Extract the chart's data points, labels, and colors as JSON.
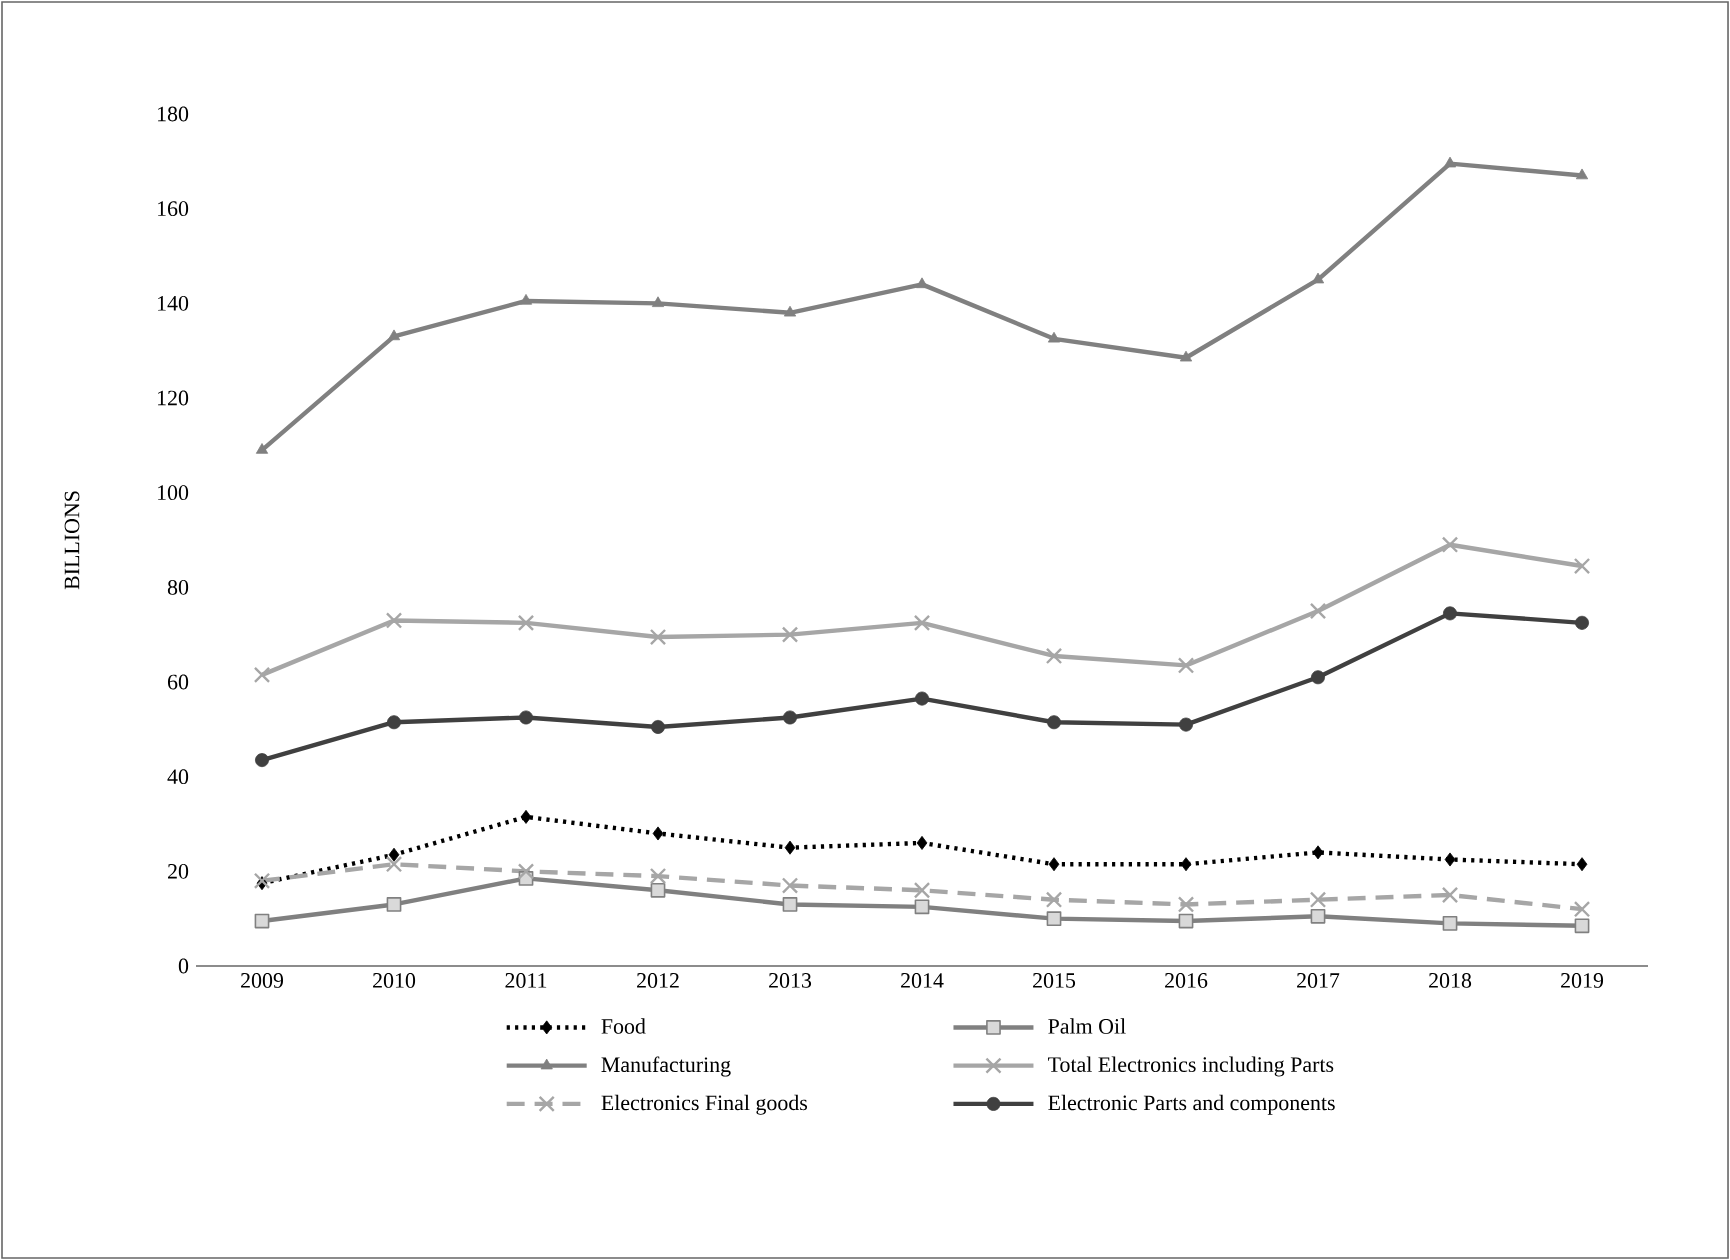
{
  "chart_data": {
    "type": "line",
    "ylabel": "BILLIONS",
    "categories": [
      "2009",
      "2010",
      "2011",
      "2012",
      "2013",
      "2014",
      "2015",
      "2016",
      "2017",
      "2018",
      "2019"
    ],
    "ylim": [
      0,
      180
    ],
    "yticks": [
      0,
      20,
      40,
      60,
      80,
      100,
      120,
      140,
      160,
      180
    ],
    "legend": "bottom",
    "series": [
      {
        "name": "Food",
        "color": "#000000",
        "marker": "diamond",
        "line_style": "dotted",
        "values": [
          17.5,
          23.5,
          31.5,
          28,
          25,
          26,
          21.5,
          21.5,
          24,
          22.5,
          21.5
        ]
      },
      {
        "name": "Palm Oil",
        "color": "#808080",
        "marker": "square",
        "line_style": "solid",
        "values": [
          9.5,
          13,
          18.5,
          16,
          13,
          12.5,
          10,
          9.5,
          10.5,
          9,
          8.5
        ]
      },
      {
        "name": "Manufacturing",
        "color": "#808080",
        "marker": "triangle",
        "line_style": "solid",
        "values": [
          109,
          133,
          140.5,
          140,
          138,
          144,
          132.5,
          128.5,
          145,
          169.5,
          167
        ]
      },
      {
        "name": "Total Electronics including Parts",
        "color": "#a6a6a6",
        "marker": "cross",
        "line_style": "solid",
        "values": [
          61.5,
          73,
          72.5,
          69.5,
          70,
          72.5,
          65.5,
          63.5,
          75,
          89,
          84.5
        ]
      },
      {
        "name": "Electronics Final goods",
        "color": "#a6a6a6",
        "marker": "cross",
        "line_style": "dashed",
        "values": [
          18,
          21.5,
          20,
          19,
          17,
          16,
          14,
          13,
          14,
          15,
          12
        ]
      },
      {
        "name": "Electronic Parts and components",
        "color": "#404040",
        "marker": "circle",
        "line_style": "solid",
        "values": [
          43.5,
          51.5,
          52.5,
          50.5,
          52.5,
          56.5,
          51.5,
          51,
          61,
          74.5,
          72.5
        ]
      }
    ]
  }
}
